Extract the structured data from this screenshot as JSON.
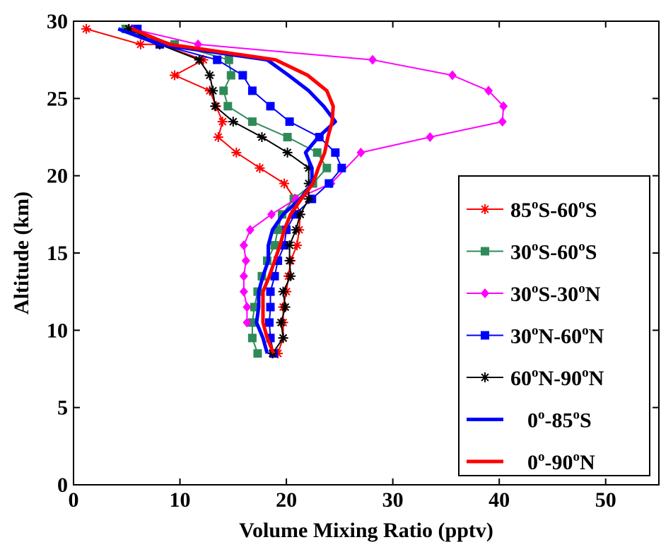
{
  "chart_data": {
    "type": "line",
    "xlabel": "Volume Mixing Ratio (pptv)",
    "ylabel": "Altitude (km)",
    "xlim": [
      0,
      55
    ],
    "ylim": [
      0,
      30
    ],
    "xticks": [
      0,
      10,
      20,
      30,
      40,
      50
    ],
    "yticks": [
      0,
      5,
      10,
      15,
      20,
      25,
      30
    ],
    "grid": false,
    "legend_position": "right",
    "series": [
      {
        "name": "85oS-60oS",
        "legend_parts": [
          [
            "85",
            "n"
          ],
          [
            "o",
            "s"
          ],
          [
            "S-60",
            "n"
          ],
          [
            "o",
            "s"
          ],
          [
            "S",
            "n"
          ]
        ],
        "color": "#ff0000",
        "marker": "asterisk",
        "line_width": 2,
        "points": [
          [
            19.2,
            8.5
          ],
          [
            19.7,
            9.5
          ],
          [
            19.7,
            10.5
          ],
          [
            19.7,
            11.5
          ],
          [
            20.0,
            12.5
          ],
          [
            20.2,
            13.5
          ],
          [
            20.4,
            14.5
          ],
          [
            21.0,
            15.5
          ],
          [
            21.2,
            16.5
          ],
          [
            21.3,
            17.5
          ],
          [
            20.8,
            18.5
          ],
          [
            19.8,
            19.5
          ],
          [
            17.5,
            20.5
          ],
          [
            15.3,
            21.5
          ],
          [
            13.6,
            22.5
          ],
          [
            14.0,
            23.5
          ],
          [
            13.4,
            24.5
          ],
          [
            12.8,
            25.5
          ],
          [
            9.5,
            26.5
          ],
          [
            12.2,
            27.5
          ],
          [
            8.1,
            28.5
          ],
          [
            6.3,
            28.5
          ],
          [
            1.2,
            29.5
          ]
        ]
      },
      {
        "name": "30oS-60oS",
        "legend_parts": [
          [
            "30",
            "n"
          ],
          [
            "o",
            "s"
          ],
          [
            "S-60",
            "n"
          ],
          [
            "o",
            "s"
          ],
          [
            "S",
            "n"
          ]
        ],
        "color": "#2e8b57",
        "marker": "square",
        "line_width": 2,
        "points": [
          [
            17.3,
            8.5
          ],
          [
            16.8,
            9.5
          ],
          [
            16.8,
            10.5
          ],
          [
            17.0,
            11.5
          ],
          [
            17.3,
            12.5
          ],
          [
            17.7,
            13.5
          ],
          [
            18.2,
            14.5
          ],
          [
            18.9,
            15.5
          ],
          [
            19.2,
            16.5
          ],
          [
            19.6,
            17.5
          ],
          [
            20.7,
            18.5
          ],
          [
            22.5,
            19.5
          ],
          [
            23.8,
            20.5
          ],
          [
            22.9,
            21.5
          ],
          [
            20.1,
            22.5
          ],
          [
            16.8,
            23.5
          ],
          [
            14.5,
            24.5
          ],
          [
            14.1,
            25.5
          ],
          [
            14.8,
            26.5
          ],
          [
            14.6,
            27.5
          ],
          [
            9.5,
            28.5
          ],
          [
            4.9,
            29.5
          ]
        ]
      },
      {
        "name": "30oS-30oN",
        "legend_parts": [
          [
            "30",
            "n"
          ],
          [
            "o",
            "s"
          ],
          [
            "S-30",
            "n"
          ],
          [
            "o",
            "s"
          ],
          [
            "N",
            "n"
          ]
        ],
        "color": "#ff00ff",
        "marker": "diamond",
        "line_width": 2,
        "points": [
          [
            16.3,
            10.5
          ],
          [
            16.3,
            11.5
          ],
          [
            16.0,
            12.5
          ],
          [
            16.0,
            13.5
          ],
          [
            16.2,
            14.5
          ],
          [
            16.0,
            15.5
          ],
          [
            16.6,
            16.5
          ],
          [
            18.6,
            17.5
          ],
          [
            20.9,
            18.5
          ],
          [
            24.2,
            19.5
          ],
          [
            27.0,
            21.5
          ],
          [
            33.5,
            22.5
          ],
          [
            40.3,
            23.5
          ],
          [
            40.4,
            24.5
          ],
          [
            39.0,
            25.5
          ],
          [
            35.6,
            26.5
          ],
          [
            28.1,
            27.5
          ],
          [
            11.7,
            28.5
          ],
          [
            5.5,
            29.5
          ]
        ]
      },
      {
        "name": "30oN-60oN",
        "legend_parts": [
          [
            "30",
            "n"
          ],
          [
            "o",
            "s"
          ],
          [
            "N-60",
            "n"
          ],
          [
            "o",
            "s"
          ],
          [
            "N",
            "n"
          ]
        ],
        "color": "#0000ff",
        "marker": "square",
        "line_width": 2,
        "points": [
          [
            18.8,
            8.5
          ],
          [
            18.5,
            9.5
          ],
          [
            18.4,
            10.5
          ],
          [
            18.5,
            11.5
          ],
          [
            18.5,
            12.5
          ],
          [
            18.9,
            13.5
          ],
          [
            19.2,
            14.5
          ],
          [
            19.8,
            15.5
          ],
          [
            20.0,
            16.5
          ],
          [
            20.8,
            17.5
          ],
          [
            22.4,
            18.5
          ],
          [
            24.0,
            19.5
          ],
          [
            25.2,
            20.5
          ],
          [
            24.6,
            21.5
          ],
          [
            23.1,
            22.5
          ],
          [
            20.3,
            23.5
          ],
          [
            18.5,
            24.5
          ],
          [
            16.8,
            25.5
          ],
          [
            15.9,
            26.5
          ],
          [
            13.5,
            27.5
          ],
          [
            8.1,
            28.5
          ],
          [
            6.0,
            29.5
          ]
        ]
      },
      {
        "name": "60oN-90oN",
        "legend_parts": [
          [
            "60",
            "n"
          ],
          [
            "o",
            "s"
          ],
          [
            "N-90",
            "n"
          ],
          [
            "o",
            "s"
          ],
          [
            "N",
            "n"
          ]
        ],
        "color": "#000000",
        "marker": "asterisk",
        "line_width": 2,
        "points": [
          [
            18.7,
            8.5
          ],
          [
            19.7,
            9.5
          ],
          [
            19.5,
            10.5
          ],
          [
            19.9,
            11.5
          ],
          [
            19.7,
            12.5
          ],
          [
            20.4,
            13.5
          ],
          [
            20.3,
            14.5
          ],
          [
            20.3,
            15.5
          ],
          [
            20.9,
            16.5
          ],
          [
            21.3,
            17.5
          ],
          [
            22.1,
            18.5
          ],
          [
            22.1,
            19.5
          ],
          [
            22.1,
            20.5
          ],
          [
            20.1,
            21.5
          ],
          [
            17.7,
            22.5
          ],
          [
            15.0,
            23.5
          ],
          [
            13.3,
            24.5
          ],
          [
            13.1,
            25.5
          ],
          [
            12.8,
            26.5
          ],
          [
            11.8,
            27.5
          ],
          [
            8.1,
            28.5
          ],
          [
            5.2,
            29.5
          ]
        ]
      },
      {
        "name": "0o-85oS",
        "legend_parts": [
          [
            "0",
            "n"
          ],
          [
            "o",
            "s"
          ],
          [
            "-85",
            "n"
          ],
          [
            "o",
            "s"
          ],
          [
            "S",
            "n"
          ]
        ],
        "color": "#0000ff",
        "marker": "none",
        "line_width": 5,
        "points": [
          [
            18.2,
            8.5
          ],
          [
            17.8,
            9.5
          ],
          [
            17.2,
            10.5
          ],
          [
            17.4,
            11.5
          ],
          [
            17.4,
            12.5
          ],
          [
            17.8,
            13.5
          ],
          [
            18.3,
            14.5
          ],
          [
            18.3,
            15.5
          ],
          [
            18.7,
            16.5
          ],
          [
            19.7,
            17.5
          ],
          [
            21.3,
            18.5
          ],
          [
            22.4,
            19.5
          ],
          [
            22.4,
            20.5
          ],
          [
            21.8,
            21.5
          ],
          [
            23.0,
            22.5
          ],
          [
            24.6,
            23.5
          ],
          [
            23.5,
            24.5
          ],
          [
            22.1,
            25.5
          ],
          [
            20.2,
            26.5
          ],
          [
            18.2,
            27.5
          ],
          [
            8.1,
            28.5
          ],
          [
            4.2,
            29.5
          ]
        ]
      },
      {
        "name": "0o-90oN",
        "legend_parts": [
          [
            "0",
            "n"
          ],
          [
            "o",
            "s"
          ],
          [
            "-90",
            "n"
          ],
          [
            "o",
            "s"
          ],
          [
            "N",
            "n"
          ]
        ],
        "color": "#ff0000",
        "marker": "none",
        "line_width": 5,
        "points": [
          [
            18.8,
            8.5
          ],
          [
            18.2,
            9.5
          ],
          [
            17.8,
            10.5
          ],
          [
            17.8,
            11.5
          ],
          [
            17.8,
            12.5
          ],
          [
            18.4,
            13.5
          ],
          [
            18.9,
            14.5
          ],
          [
            19.4,
            15.5
          ],
          [
            19.8,
            16.5
          ],
          [
            20.4,
            17.5
          ],
          [
            21.4,
            18.5
          ],
          [
            22.5,
            19.5
          ],
          [
            23.0,
            20.5
          ],
          [
            23.6,
            21.5
          ],
          [
            23.9,
            22.5
          ],
          [
            24.3,
            23.5
          ],
          [
            24.4,
            24.5
          ],
          [
            23.8,
            25.5
          ],
          [
            22.0,
            26.5
          ],
          [
            19.0,
            27.5
          ],
          [
            9.0,
            28.5
          ],
          [
            5.5,
            29.5
          ]
        ]
      }
    ]
  }
}
